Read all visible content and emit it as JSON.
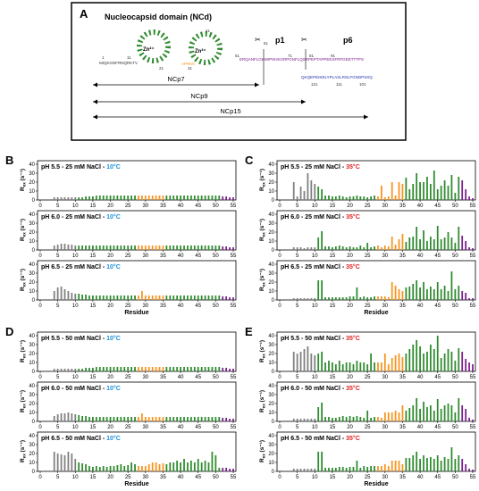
{
  "panelA": {
    "letter": "A",
    "title": "Nucleocapsid domain (NCd)",
    "zinc_label": "Zn²⁺",
    "p1_label": "p1",
    "p6_label": "p6",
    "seq_start": "MIQKGNFRNQRKTV",
    "seq_linker": "APRKK",
    "seq_p1": "ERQANFLGKIWPSHKGRPGNFLQSRPEPTAPPEESFRFGEETTTPS",
    "seq_p6": "QKQEPIDKELYPLASLRSLFGNDPSSQ",
    "num_labels": [
      "1",
      "11",
      "21",
      "31",
      "41",
      "51",
      "61",
      "71",
      "81",
      "91",
      "101",
      "111",
      "121"
    ],
    "ncp7": "NCp7",
    "ncp9": "NCp9",
    "ncp15": "NCp15",
    "colors": {
      "grey": "#7f7f7f",
      "orange": "#f7941d",
      "green": "#2e8b2e",
      "purple": "#7b1f8f",
      "blue": "#2233aa"
    }
  },
  "chart_data": [
    {
      "type": "bar",
      "letter": "B",
      "title_prefix": "pH 5.5 - 25 mM NaCl - ",
      "temp": "10°C",
      "temp_color": "#1a8fd8",
      "ylabel": "R",
      "ylim": [
        0,
        40
      ],
      "yticks": [
        0,
        10,
        20,
        30,
        40
      ],
      "x": [
        1,
        2,
        3,
        4,
        5,
        6,
        7,
        8,
        9,
        10,
        11,
        12,
        13,
        14,
        15,
        16,
        17,
        18,
        19,
        20,
        21,
        22,
        23,
        24,
        25,
        26,
        27,
        28,
        29,
        30,
        31,
        32,
        33,
        34,
        35,
        36,
        37,
        38,
        39,
        40,
        41,
        42,
        43,
        44,
        45,
        46,
        47,
        48,
        49,
        50,
        51,
        52,
        53,
        54,
        55
      ],
      "values": [
        0,
        0,
        0,
        3,
        3,
        3,
        3,
        3,
        3,
        3,
        3,
        3,
        4,
        4,
        4,
        5,
        5,
        5,
        5,
        5,
        5,
        5,
        5,
        5,
        5,
        5,
        5,
        5,
        5,
        5,
        5,
        5,
        5,
        5,
        5,
        5,
        5,
        5,
        5,
        5,
        5,
        5,
        5,
        5,
        5,
        5,
        5,
        5,
        5,
        5,
        5,
        4,
        4,
        3,
        3
      ]
    },
    {
      "type": "bar",
      "title_prefix": "pH 6.0 - 25 mM NaCl - ",
      "temp": "10°C",
      "temp_color": "#1a8fd8",
      "ylabel": "R",
      "ylim": [
        0,
        40
      ],
      "yticks": [
        0,
        10,
        20,
        30,
        40
      ],
      "values": [
        0,
        0,
        0,
        5,
        6,
        7,
        7,
        6,
        6,
        5,
        5,
        5,
        5,
        5,
        5,
        5,
        5,
        5,
        5,
        5,
        5,
        5,
        5,
        5,
        5,
        5,
        5,
        5,
        5,
        5,
        5,
        5,
        5,
        5,
        5,
        5,
        5,
        5,
        5,
        5,
        5,
        5,
        5,
        5,
        5,
        5,
        5,
        5,
        5,
        5,
        5,
        4,
        4,
        3,
        3
      ]
    },
    {
      "type": "bar",
      "title_prefix": "pH 6.5 - 25 mM NaCl - ",
      "temp": "10°C",
      "temp_color": "#1a8fd8",
      "ylabel": "R",
      "ylim": [
        0,
        40
      ],
      "yticks": [
        0,
        10,
        20,
        30,
        40
      ],
      "values": [
        0,
        0,
        0,
        10,
        14,
        15,
        12,
        10,
        8,
        7,
        7,
        6,
        6,
        5,
        5,
        5,
        5,
        5,
        5,
        5,
        5,
        5,
        5,
        5,
        5,
        5,
        5,
        5,
        10,
        5,
        5,
        5,
        5,
        5,
        5,
        5,
        5,
        5,
        5,
        5,
        5,
        5,
        5,
        5,
        5,
        5,
        5,
        5,
        5,
        5,
        5,
        4,
        4,
        3,
        3
      ]
    },
    {
      "type": "bar",
      "letter": "C",
      "title_prefix": "pH 5.5 - 25 mM NaCl - ",
      "temp": "35°C",
      "temp_color": "#e02020",
      "ylabel": "R",
      "ylim": [
        0,
        40
      ],
      "yticks": [
        0,
        10,
        20,
        30,
        40
      ],
      "values": [
        0,
        0,
        0,
        20,
        4,
        15,
        10,
        30,
        22,
        18,
        15,
        12,
        5,
        5,
        4,
        4,
        5,
        4,
        3,
        4,
        4,
        5,
        4,
        4,
        3,
        4,
        5,
        4,
        16,
        3,
        4,
        20,
        5,
        20,
        18,
        25,
        12,
        18,
        30,
        20,
        20,
        26,
        18,
        33,
        12,
        16,
        22,
        16,
        28,
        8,
        26,
        22,
        12,
        4,
        2
      ]
    },
    {
      "type": "bar",
      "title_prefix": "pH 6.0 - 25 mM NaCl - ",
      "temp": "35°C",
      "temp_color": "#e02020",
      "ylabel": "R",
      "ylim": [
        0,
        40
      ],
      "yticks": [
        0,
        10,
        20,
        30,
        40
      ],
      "values": [
        0,
        0,
        0,
        3,
        3,
        3,
        2,
        3,
        3,
        3,
        14,
        21,
        4,
        4,
        3,
        4,
        5,
        4,
        3,
        4,
        3,
        3,
        5,
        3,
        8,
        3,
        4,
        5,
        3,
        5,
        4,
        15,
        6,
        12,
        18,
        9,
        14,
        15,
        26,
        12,
        22,
        10,
        15,
        12,
        27,
        12,
        14,
        20,
        14,
        8,
        26,
        16,
        10,
        3,
        2
      ]
    },
    {
      "type": "bar",
      "title_prefix": "pH 6.5 - 25 mM NaCl - ",
      "temp": "35°C",
      "temp_color": "#e02020",
      "ylabel": "R",
      "ylim": [
        0,
        40
      ],
      "yticks": [
        0,
        10,
        20,
        30,
        40
      ],
      "values": [
        0,
        0,
        0,
        2,
        2,
        2,
        2,
        2,
        2,
        2,
        22,
        22,
        3,
        3,
        3,
        3,
        3,
        3,
        3,
        4,
        4,
        14,
        3,
        4,
        3,
        3,
        4,
        4,
        4,
        4,
        3,
        20,
        16,
        12,
        10,
        14,
        15,
        18,
        22,
        14,
        20,
        12,
        15,
        12,
        20,
        12,
        16,
        10,
        32,
        12,
        16,
        10,
        8,
        2,
        2
      ]
    },
    {
      "type": "bar",
      "letter": "D",
      "title_prefix": "pH 5.5 - 50 mM NaCl - ",
      "temp": "10°C",
      "temp_color": "#1a8fd8",
      "ylabel": "R",
      "ylim": [
        0,
        40
      ],
      "yticks": [
        0,
        10,
        20,
        30,
        40
      ],
      "values": [
        0,
        0,
        0,
        3,
        3,
        3,
        3,
        3,
        3,
        3,
        3,
        3,
        4,
        4,
        4,
        5,
        5,
        5,
        5,
        5,
        5,
        5,
        5,
        5,
        5,
        5,
        5,
        5,
        5,
        5,
        5,
        5,
        5,
        5,
        5,
        5,
        5,
        5,
        5,
        5,
        5,
        5,
        5,
        5,
        5,
        5,
        5,
        5,
        5,
        5,
        5,
        4,
        4,
        3,
        3
      ]
    },
    {
      "type": "bar",
      "title_prefix": "pH 6.0 - 50 mM NaCl - ",
      "temp": "10°C",
      "temp_color": "#1a8fd8",
      "ylabel": "R",
      "ylim": [
        0,
        40
      ],
      "yticks": [
        0,
        10,
        20,
        30,
        40
      ],
      "values": [
        0,
        0,
        0,
        6,
        8,
        9,
        9,
        10,
        9,
        8,
        7,
        6,
        6,
        5,
        5,
        5,
        5,
        5,
        5,
        5,
        5,
        5,
        5,
        5,
        5,
        5,
        5,
        5,
        9,
        5,
        5,
        5,
        5,
        5,
        5,
        5,
        5,
        5,
        5,
        5,
        5,
        5,
        5,
        5,
        5,
        5,
        5,
        5,
        5,
        5,
        5,
        4,
        4,
        3,
        3
      ]
    },
    {
      "type": "bar",
      "title_prefix": "pH 6.5 - 50 mM NaCl - ",
      "temp": "10°C",
      "temp_color": "#1a8fd8",
      "ylabel": "R",
      "ylim": [
        0,
        40
      ],
      "yticks": [
        0,
        10,
        20,
        30,
        40
      ],
      "values": [
        0,
        0,
        0,
        22,
        20,
        19,
        18,
        22,
        20,
        14,
        10,
        9,
        8,
        6,
        5,
        6,
        5,
        6,
        5,
        6,
        6,
        7,
        8,
        6,
        7,
        10,
        8,
        6,
        6,
        6,
        8,
        10,
        10,
        8,
        9,
        8,
        10,
        10,
        12,
        10,
        14,
        10,
        12,
        10,
        14,
        10,
        12,
        10,
        22,
        18,
        4,
        4,
        4,
        3,
        3
      ]
    },
    {
      "type": "bar",
      "letter": "E",
      "title_prefix": "pH 5.5 - 50 mM NaCl - ",
      "temp": "35°C",
      "temp_color": "#e02020",
      "ylabel": "R",
      "ylim": [
        0,
        40
      ],
      "yticks": [
        0,
        10,
        20,
        30,
        40
      ],
      "values": [
        0,
        0,
        0,
        22,
        20,
        22,
        25,
        28,
        20,
        18,
        20,
        22,
        10,
        12,
        10,
        8,
        12,
        8,
        10,
        10,
        8,
        12,
        10,
        10,
        8,
        20,
        10,
        10,
        10,
        20,
        8,
        15,
        18,
        20,
        16,
        20,
        25,
        30,
        35,
        28,
        20,
        22,
        30,
        25,
        40,
        15,
        20,
        25,
        22,
        12,
        26,
        22,
        14,
        10,
        8
      ]
    },
    {
      "type": "bar",
      "title_prefix": "pH 6.0 - 50 mM NaCl - ",
      "temp": "35°C",
      "temp_color": "#e02020",
      "ylabel": "R",
      "ylim": [
        0,
        40
      ],
      "yticks": [
        0,
        10,
        20,
        30,
        40
      ],
      "values": [
        0,
        0,
        0,
        3,
        3,
        3,
        3,
        3,
        3,
        3,
        16,
        21,
        5,
        5,
        4,
        4,
        5,
        6,
        5,
        6,
        5,
        6,
        5,
        4,
        12,
        4,
        5,
        5,
        4,
        10,
        10,
        10,
        12,
        10,
        18,
        12,
        15,
        18,
        26,
        14,
        22,
        16,
        18,
        12,
        25,
        14,
        18,
        20,
        18,
        10,
        26,
        18,
        14,
        4,
        2
      ]
    },
    {
      "type": "bar",
      "title_prefix": "pH 6.5 - 50 mM NaCl - ",
      "temp": "35°C",
      "temp_color": "#e02020",
      "ylabel": "R",
      "ylim": [
        0,
        40
      ],
      "yticks": [
        0,
        10,
        20,
        30,
        40
      ],
      "values": [
        0,
        0,
        0,
        3,
        3,
        3,
        3,
        3,
        3,
        3,
        22,
        22,
        4,
        4,
        4,
        4,
        5,
        5,
        4,
        5,
        5,
        12,
        4,
        6,
        5,
        6,
        6,
        6,
        6,
        8,
        6,
        12,
        12,
        12,
        8,
        15,
        15,
        18,
        22,
        14,
        18,
        15,
        16,
        14,
        18,
        12,
        16,
        14,
        27,
        14,
        18,
        14,
        8,
        3,
        2
      ]
    }
  ],
  "axis": {
    "xticks": [
      "0",
      "5",
      "10",
      "15",
      "20",
      "25",
      "30",
      "35",
      "40",
      "45",
      "50",
      "55"
    ],
    "xlabel": "Residue",
    "ylabel_main": "R",
    "ylabel_sub": "ex",
    "ylabel_unit": " (s⁻¹)"
  },
  "residue_colors": {
    "grey_to": 10,
    "orange_from": 28,
    "orange_to": 35,
    "green_to": 51,
    "purple_from": 52
  }
}
